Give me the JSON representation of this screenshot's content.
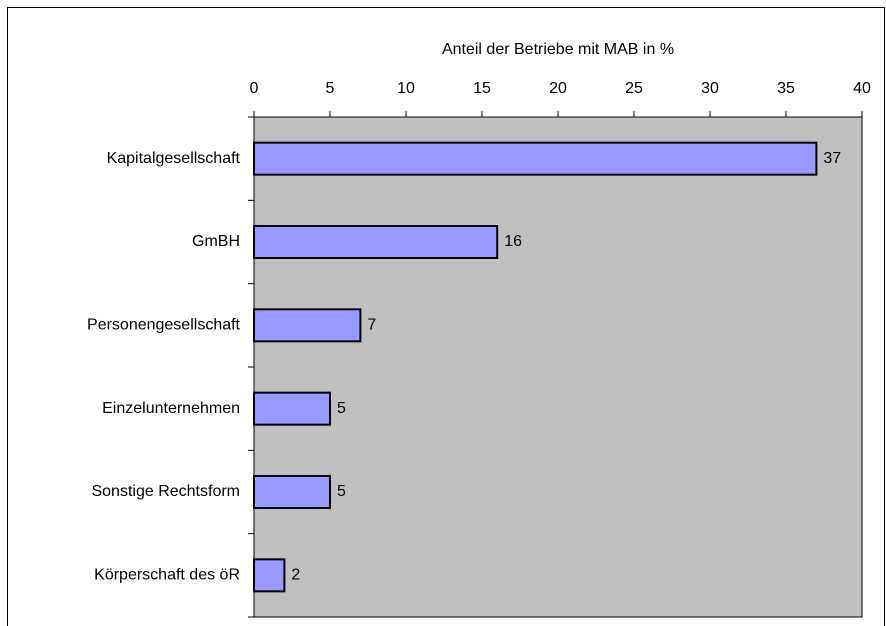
{
  "chart_data": {
    "type": "bar",
    "orientation": "horizontal",
    "x_label": "Anteil der Betriebe mit MAB in %",
    "categories": [
      "Kapitalgesellschaft",
      "GmBH",
      "Personengesellschaft",
      "Einzelunternehmen",
      "Sonstige Rechtsform",
      "Körperschaft des öR"
    ],
    "values": [
      37,
      16,
      7,
      5,
      5,
      2
    ],
    "color": "#9999ff",
    "xlim": [
      0,
      40
    ],
    "xticks": [
      0,
      5,
      10,
      15,
      20,
      25,
      30,
      35,
      40
    ],
    "grid": false
  }
}
